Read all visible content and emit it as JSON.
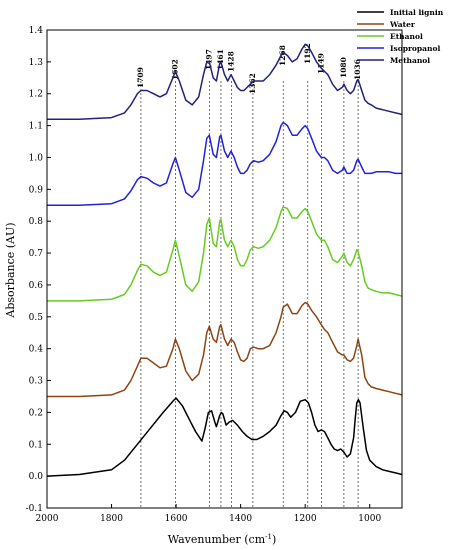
{
  "chart_data": {
    "type": "line",
    "xlabel": "Wavenumber (cm",
    "xlabel_sup": "-1",
    "xlabel_close": ")",
    "ylabel": "Absorbance (AU)",
    "xlim": [
      2000,
      900
    ],
    "ylim": [
      -0.1,
      1.4
    ],
    "x_ticks": [
      2000,
      1800,
      1600,
      1400,
      1200,
      1000
    ],
    "y_ticks": [
      -0.1,
      0.0,
      0.1,
      0.2,
      0.3,
      0.4,
      0.5,
      0.6,
      0.7,
      0.8,
      0.9,
      1.0,
      1.1,
      1.2,
      1.3,
      1.4
    ],
    "peak_markers": [
      1709,
      1602,
      1497,
      1461,
      1428,
      1362,
      1268,
      1192,
      1149,
      1080,
      1036
    ],
    "peak_labels": [
      "1709",
      "1602",
      "1497",
      "1461",
      "1428",
      "1362",
      "1268",
      "1192",
      "1149",
      "1080",
      "1036"
    ],
    "legend_placement": "top-right",
    "series": [
      {
        "name": "Initial lignin",
        "color": "#000000",
        "x": [
          2000,
          1900,
          1800,
          1760,
          1720,
          1680,
          1640,
          1610,
          1600,
          1580,
          1560,
          1540,
          1520,
          1510,
          1500,
          1490,
          1480,
          1475,
          1465,
          1460,
          1455,
          1445,
          1435,
          1425,
          1410,
          1395,
          1380,
          1365,
          1350,
          1330,
          1310,
          1290,
          1275,
          1265,
          1255,
          1245,
          1230,
          1215,
          1200,
          1190,
          1180,
          1170,
          1160,
          1150,
          1140,
          1130,
          1120,
          1110,
          1100,
          1090,
          1080,
          1070,
          1060,
          1050,
          1045,
          1040,
          1035,
          1030,
          1020,
          1010,
          1000,
          980,
          960,
          940,
          920,
          900
        ],
        "y": [
          0.0,
          0.005,
          0.02,
          0.05,
          0.1,
          0.15,
          0.2,
          0.235,
          0.245,
          0.22,
          0.18,
          0.14,
          0.11,
          0.15,
          0.2,
          0.205,
          0.17,
          0.155,
          0.19,
          0.2,
          0.195,
          0.16,
          0.17,
          0.175,
          0.16,
          0.14,
          0.125,
          0.115,
          0.115,
          0.125,
          0.14,
          0.16,
          0.19,
          0.205,
          0.2,
          0.185,
          0.2,
          0.235,
          0.24,
          0.23,
          0.2,
          0.16,
          0.14,
          0.145,
          0.14,
          0.12,
          0.1,
          0.085,
          0.08,
          0.085,
          0.075,
          0.06,
          0.07,
          0.12,
          0.18,
          0.23,
          0.24,
          0.23,
          0.15,
          0.08,
          0.05,
          0.03,
          0.02,
          0.015,
          0.01,
          0.005
        ]
      },
      {
        "name": "Water",
        "color": "#8b4513",
        "x": [
          2000,
          1900,
          1800,
          1760,
          1740,
          1720,
          1709,
          1690,
          1670,
          1650,
          1630,
          1610,
          1602,
          1590,
          1570,
          1550,
          1530,
          1515,
          1505,
          1497,
          1485,
          1475,
          1465,
          1461,
          1450,
          1440,
          1430,
          1420,
          1410,
          1400,
          1390,
          1380,
          1370,
          1360,
          1345,
          1330,
          1310,
          1290,
          1275,
          1268,
          1255,
          1240,
          1225,
          1210,
          1200,
          1192,
          1180,
          1165,
          1150,
          1140,
          1130,
          1115,
          1100,
          1085,
          1080,
          1070,
          1060,
          1050,
          1040,
          1036,
          1025,
          1015,
          1005,
          995,
          980,
          960,
          940,
          920,
          900
        ],
        "y": [
          0.25,
          0.25,
          0.255,
          0.27,
          0.3,
          0.345,
          0.37,
          0.37,
          0.355,
          0.34,
          0.345,
          0.4,
          0.43,
          0.4,
          0.33,
          0.3,
          0.32,
          0.38,
          0.45,
          0.47,
          0.43,
          0.42,
          0.47,
          0.475,
          0.43,
          0.41,
          0.43,
          0.42,
          0.39,
          0.365,
          0.36,
          0.37,
          0.4,
          0.405,
          0.4,
          0.4,
          0.41,
          0.45,
          0.5,
          0.53,
          0.54,
          0.51,
          0.51,
          0.535,
          0.545,
          0.54,
          0.52,
          0.5,
          0.475,
          0.46,
          0.45,
          0.42,
          0.39,
          0.38,
          0.38,
          0.365,
          0.36,
          0.37,
          0.41,
          0.43,
          0.38,
          0.31,
          0.29,
          0.28,
          0.275,
          0.27,
          0.265,
          0.26,
          0.255
        ]
      },
      {
        "name": "Ethanol",
        "color": "#66cc22",
        "x": [
          2000,
          1900,
          1800,
          1760,
          1740,
          1720,
          1709,
          1690,
          1670,
          1650,
          1630,
          1610,
          1602,
          1590,
          1570,
          1550,
          1530,
          1515,
          1505,
          1497,
          1485,
          1475,
          1465,
          1461,
          1450,
          1440,
          1430,
          1420,
          1410,
          1400,
          1390,
          1380,
          1370,
          1360,
          1345,
          1330,
          1310,
          1290,
          1275,
          1268,
          1255,
          1240,
          1225,
          1210,
          1200,
          1192,
          1180,
          1165,
          1150,
          1140,
          1130,
          1115,
          1100,
          1085,
          1080,
          1070,
          1060,
          1050,
          1040,
          1036,
          1025,
          1015,
          1005,
          995,
          980,
          960,
          940,
          920,
          900
        ],
        "y": [
          0.55,
          0.55,
          0.555,
          0.57,
          0.6,
          0.645,
          0.665,
          0.66,
          0.64,
          0.63,
          0.64,
          0.71,
          0.74,
          0.69,
          0.6,
          0.58,
          0.61,
          0.7,
          0.79,
          0.81,
          0.73,
          0.72,
          0.8,
          0.805,
          0.74,
          0.72,
          0.74,
          0.72,
          0.68,
          0.66,
          0.66,
          0.68,
          0.71,
          0.72,
          0.715,
          0.72,
          0.74,
          0.78,
          0.83,
          0.845,
          0.84,
          0.81,
          0.81,
          0.83,
          0.84,
          0.83,
          0.8,
          0.76,
          0.74,
          0.74,
          0.72,
          0.68,
          0.67,
          0.69,
          0.7,
          0.67,
          0.66,
          0.68,
          0.71,
          0.705,
          0.66,
          0.61,
          0.59,
          0.585,
          0.58,
          0.575,
          0.575,
          0.57,
          0.565
        ]
      },
      {
        "name": "Isopropanol",
        "color": "#2222dd",
        "x": [
          2000,
          1900,
          1800,
          1760,
          1740,
          1720,
          1709,
          1690,
          1670,
          1650,
          1630,
          1610,
          1602,
          1590,
          1570,
          1550,
          1530,
          1515,
          1505,
          1497,
          1485,
          1475,
          1465,
          1461,
          1450,
          1440,
          1430,
          1420,
          1410,
          1400,
          1390,
          1380,
          1370,
          1360,
          1345,
          1330,
          1310,
          1290,
          1275,
          1268,
          1255,
          1240,
          1225,
          1210,
          1200,
          1192,
          1180,
          1165,
          1150,
          1140,
          1130,
          1115,
          1100,
          1085,
          1080,
          1070,
          1060,
          1050,
          1040,
          1036,
          1025,
          1015,
          1005,
          995,
          980,
          960,
          940,
          920,
          900
        ],
        "y": [
          0.85,
          0.85,
          0.855,
          0.87,
          0.895,
          0.93,
          0.94,
          0.935,
          0.92,
          0.91,
          0.92,
          0.98,
          1.0,
          0.96,
          0.89,
          0.875,
          0.9,
          0.99,
          1.06,
          1.07,
          1.01,
          1.0,
          1.065,
          1.07,
          1.02,
          1.0,
          1.02,
          1.0,
          0.97,
          0.95,
          0.95,
          0.96,
          0.98,
          0.99,
          0.985,
          0.99,
          1.01,
          1.05,
          1.1,
          1.11,
          1.1,
          1.07,
          1.07,
          1.09,
          1.1,
          1.09,
          1.06,
          1.02,
          1.0,
          1.0,
          0.99,
          0.96,
          0.95,
          0.96,
          0.97,
          0.95,
          0.95,
          0.96,
          0.99,
          0.995,
          0.97,
          0.95,
          0.95,
          0.95,
          0.955,
          0.955,
          0.955,
          0.95,
          0.95
        ]
      },
      {
        "name": "Methanol",
        "color": "#22227a",
        "x": [
          2000,
          1900,
          1800,
          1760,
          1740,
          1720,
          1709,
          1690,
          1670,
          1650,
          1630,
          1610,
          1602,
          1590,
          1570,
          1550,
          1530,
          1515,
          1505,
          1497,
          1485,
          1475,
          1465,
          1461,
          1450,
          1440,
          1430,
          1420,
          1410,
          1400,
          1390,
          1380,
          1370,
          1360,
          1345,
          1330,
          1310,
          1290,
          1275,
          1268,
          1255,
          1240,
          1225,
          1210,
          1200,
          1192,
          1180,
          1165,
          1150,
          1140,
          1130,
          1115,
          1100,
          1085,
          1080,
          1070,
          1060,
          1050,
          1040,
          1036,
          1025,
          1015,
          1005,
          995,
          980,
          960,
          940,
          920,
          900
        ],
        "y": [
          1.12,
          1.12,
          1.125,
          1.14,
          1.165,
          1.2,
          1.21,
          1.21,
          1.2,
          1.19,
          1.2,
          1.25,
          1.27,
          1.24,
          1.18,
          1.165,
          1.19,
          1.26,
          1.3,
          1.3,
          1.25,
          1.24,
          1.295,
          1.3,
          1.26,
          1.24,
          1.26,
          1.24,
          1.22,
          1.21,
          1.21,
          1.22,
          1.23,
          1.24,
          1.24,
          1.24,
          1.26,
          1.29,
          1.32,
          1.33,
          1.32,
          1.3,
          1.31,
          1.34,
          1.355,
          1.35,
          1.33,
          1.3,
          1.28,
          1.27,
          1.26,
          1.23,
          1.21,
          1.22,
          1.23,
          1.21,
          1.2,
          1.21,
          1.24,
          1.245,
          1.21,
          1.18,
          1.17,
          1.165,
          1.155,
          1.15,
          1.145,
          1.14,
          1.135
        ]
      }
    ]
  }
}
